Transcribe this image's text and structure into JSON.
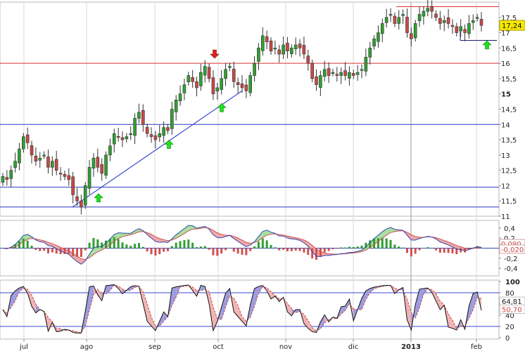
{
  "chart_data": [
    {
      "type": "candlestick",
      "panel": "price",
      "x_axis_labels": [
        "jul",
        "ago",
        "sep",
        "oct",
        "nov",
        "dic",
        "2013",
        "feb"
      ],
      "ylim": [
        11,
        18
      ],
      "y_ticks": [
        {
          "value": 11,
          "label": "11"
        },
        {
          "value": 11.5,
          "label": "11,5"
        },
        {
          "value": 12,
          "label": "12"
        },
        {
          "value": 12.5,
          "label": "12,5"
        },
        {
          "value": 13,
          "label": "13"
        },
        {
          "value": 13.5,
          "label": "13,5"
        },
        {
          "value": 14,
          "label": "14"
        },
        {
          "value": 14.5,
          "label": "14,5"
        },
        {
          "value": 15,
          "label": "15",
          "bold": true
        },
        {
          "value": 15.5,
          "label": "15,5"
        },
        {
          "value": 16,
          "label": "16"
        },
        {
          "value": 16.5,
          "label": "16,5"
        },
        {
          "value": 17,
          "label": "17"
        },
        {
          "value": 17.5,
          "label": "17,5"
        }
      ],
      "last_price_label": "17,24",
      "last_price": 17.24,
      "closes": [
        12.3,
        12.2,
        12.5,
        12.8,
        13.2,
        13.6,
        13.4,
        13.0,
        12.8,
        12.9,
        13.0,
        12.6,
        12.8,
        12.5,
        12.4,
        12.3,
        12.2,
        11.7,
        11.5,
        11.3,
        12.0,
        12.6,
        12.9,
        12.6,
        12.4,
        13.0,
        13.3,
        13.7,
        13.6,
        13.5,
        13.6,
        13.7,
        14.2,
        14.4,
        14.0,
        13.7,
        13.6,
        13.5,
        13.7,
        13.9,
        13.8,
        14.5,
        14.8,
        15.0,
        15.3,
        15.6,
        15.4,
        15.2,
        15.7,
        15.9,
        15.5,
        15.0,
        15.2,
        15.5,
        15.8,
        15.9,
        15.4,
        15.3,
        15.2,
        15.1,
        15.6,
        16.0,
        16.5,
        16.9,
        16.7,
        16.4,
        16.5,
        16.3,
        16.6,
        16.4,
        16.5,
        16.6,
        16.5,
        16.3,
        16.0,
        15.5,
        15.3,
        15.6,
        15.8,
        15.6,
        15.7,
        15.6,
        15.7,
        15.6,
        15.7,
        15.6,
        15.7,
        15.8,
        16.2,
        16.5,
        16.8,
        17.0,
        17.3,
        17.5,
        17.6,
        17.3,
        17.5,
        17.6,
        17.0,
        16.8,
        17.3,
        17.6,
        17.7,
        17.8,
        17.7,
        17.5,
        17.3,
        17.4,
        17.3,
        17.2,
        17.0,
        17.2,
        17.0,
        17.3,
        17.4,
        17.5,
        17.24
      ],
      "horizontal_levels": [
        {
          "value": 16.0,
          "color": "#d83030"
        },
        {
          "value": 17.85,
          "color": "#d83030"
        },
        {
          "value": 14.0,
          "color": "#2a38c0"
        },
        {
          "value": 11.95,
          "color": "#2a38c0"
        },
        {
          "value": 11.3,
          "color": "#2a38c0"
        }
      ],
      "trendline": {
        "from_value": 11.3,
        "to_value": 15.1,
        "color": "#3a48d0"
      },
      "signals": [
        {
          "type": "buy",
          "value": 11.6
        },
        {
          "type": "buy",
          "value": 13.35
        },
        {
          "type": "buy",
          "value": 14.55
        },
        {
          "type": "sell",
          "value": 16.3
        },
        {
          "type": "buy",
          "value": 16.6
        }
      ],
      "colors": {
        "up": "#30a030",
        "down": "#c84848"
      }
    },
    {
      "type": "macd",
      "panel": "macd",
      "ylim": [
        -0.55,
        0.55
      ],
      "y_ticks": [
        {
          "value": 0.4,
          "label": "0,4"
        },
        {
          "value": 0.2,
          "label": "0,2"
        },
        {
          "value": 0,
          "label": "0"
        },
        {
          "value": -0.2,
          "label": "-0,2"
        },
        {
          "value": -0.4,
          "label": "-0,4"
        }
      ],
      "value_labels": [
        {
          "value": 0.09,
          "label": "0,090",
          "color": "#c84848"
        },
        {
          "value": -0.02,
          "label": "-0,020",
          "color": "#c84848"
        }
      ],
      "colors": {
        "fill_up": "#a8e0a0",
        "fill_down": "#f0a8a8",
        "hist_up": "#30a030",
        "hist_down": "#d05050",
        "line": "#3048b0"
      }
    },
    {
      "type": "stochastic",
      "panel": "stochastic",
      "ylim": [
        0,
        100
      ],
      "y_ticks": [
        {
          "value": 100,
          "label": "100",
          "bold": true
        },
        {
          "value": 80,
          "label": "80"
        },
        {
          "value": 60,
          "label": "60"
        },
        {
          "value": 40,
          "label": "40"
        },
        {
          "value": 20,
          "label": "20"
        },
        {
          "value": 0,
          "label": "0"
        }
      ],
      "levels": [
        80,
        20
      ],
      "value_labels": [
        {
          "value": 64.81,
          "label": "64,81",
          "color": "#222222"
        },
        {
          "value": 50.7,
          "label": "50,70",
          "color": "#c84848"
        }
      ],
      "colors": {
        "k_line": "#111111",
        "d_line": "#c84848",
        "fill_up": "#9c9ce0",
        "fill_down": "#f0b4b4",
        "level": "#3a48d0"
      }
    }
  ]
}
